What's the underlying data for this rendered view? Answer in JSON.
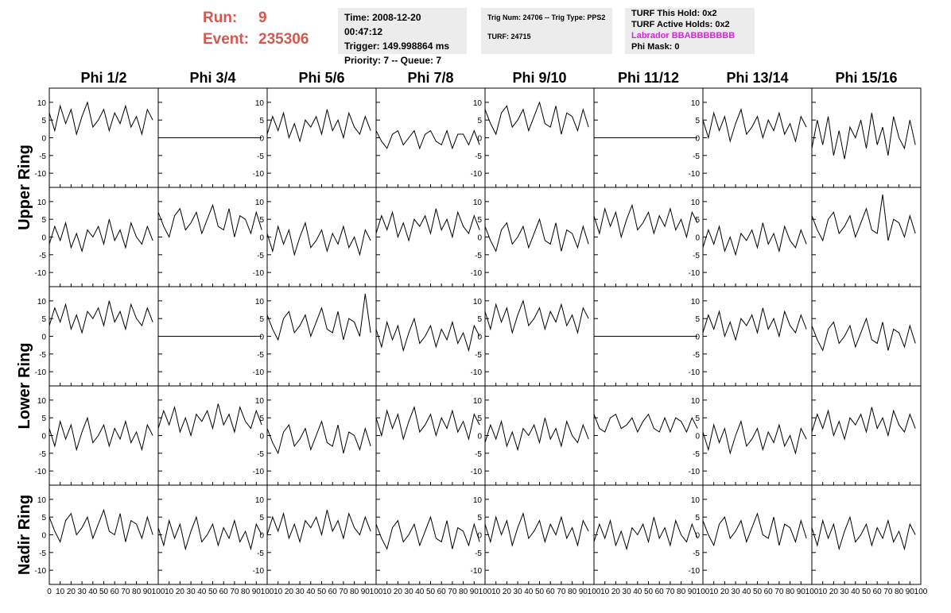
{
  "header": {
    "run_label": "Run:",
    "run": "9",
    "event_label": "Event:",
    "event": "235306"
  },
  "info_boxes": [
    [
      "Time: 2008-12-20 00:47:12",
      "Trigger: 149.998864 ms",
      "Priority: 7 -- Queue: 7"
    ],
    [
      "Trig Num: 24706 -- Trig Type: PPS2",
      "TURF: 24715"
    ],
    [
      "TURF This Hold: 0x2",
      "TURF Active Holds: 0x2",
      "Labrador BBABBBBBBB",
      "Phi Mask: 0"
    ]
  ],
  "chart_data": {
    "type": "line",
    "color": "#000000",
    "columns": [
      "Phi 1/2",
      "Phi 3/4",
      "Phi 5/6",
      "Phi 7/8",
      "Phi 9/10",
      "Phi 11/12",
      "Phi 13/14",
      "Phi 15/16"
    ],
    "ring_labels": [
      "Upper Ring",
      "Lower Ring",
      "Nadir Ring"
    ],
    "xlim": [
      0,
      100
    ],
    "xticks": [
      0,
      10,
      20,
      30,
      40,
      50,
      60,
      70,
      80,
      90,
      100
    ],
    "ylim": [
      -14,
      14
    ],
    "yticks": [
      -10,
      -5,
      0,
      5,
      10
    ],
    "x": [
      0,
      5,
      10,
      15,
      20,
      25,
      30,
      35,
      40,
      45,
      50,
      55,
      60,
      65,
      70,
      75,
      80,
      85,
      90,
      95
    ],
    "waveforms": [
      [
        [
          7,
          2,
          9,
          4,
          8,
          1,
          6,
          10,
          3,
          5,
          8,
          2,
          7,
          4,
          9,
          3,
          6,
          1,
          8,
          5
        ],
        [
          0,
          0,
          0,
          0,
          0,
          0,
          0,
          0,
          0,
          0,
          0,
          0,
          0,
          0,
          0,
          0,
          0,
          0,
          0,
          0
        ],
        [
          1,
          6,
          2,
          7,
          0,
          4,
          -1,
          5,
          3,
          6,
          1,
          8,
          2,
          5,
          0,
          7,
          3,
          1,
          6,
          2
        ],
        [
          2,
          -1,
          -3,
          1,
          2,
          -2,
          0,
          2,
          -3,
          1,
          2,
          -1,
          -2,
          2,
          -3,
          1,
          1,
          -2,
          2,
          -2
        ],
        [
          8,
          4,
          1,
          7,
          9,
          3,
          5,
          8,
          2,
          6,
          10,
          4,
          3,
          9,
          1,
          7,
          6,
          2,
          8,
          3
        ],
        [
          0,
          0,
          0,
          0,
          0,
          0,
          0,
          0,
          0,
          0,
          0,
          0,
          0,
          0,
          0,
          0,
          0,
          0,
          0,
          0
        ],
        [
          5,
          0,
          7,
          2,
          6,
          -1,
          4,
          8,
          1,
          3,
          6,
          0,
          5,
          2,
          7,
          1,
          4,
          -1,
          6,
          3
        ],
        [
          -3,
          5,
          -2,
          6,
          -5,
          2,
          -6,
          3,
          0,
          5,
          -3,
          7,
          -2,
          3,
          -5,
          6,
          0,
          -3,
          5,
          -2
        ]
      ],
      [
        [
          -2,
          3,
          -1,
          4,
          -3,
          1,
          -4,
          2,
          0,
          3,
          -2,
          5,
          -1,
          2,
          -3,
          4,
          0,
          -2,
          3,
          -1
        ],
        [
          7,
          3,
          0,
          6,
          8,
          2,
          4,
          7,
          1,
          5,
          9,
          3,
          2,
          8,
          0,
          6,
          5,
          1,
          7,
          2
        ],
        [
          1,
          -4,
          3,
          -2,
          2,
          -5,
          0,
          4,
          -3,
          -1,
          2,
          -4,
          1,
          -2,
          3,
          -3,
          0,
          -5,
          2,
          -1
        ],
        [
          1,
          6,
          2,
          7,
          0,
          4,
          -1,
          5,
          3,
          6,
          1,
          8,
          2,
          5,
          0,
          7,
          3,
          1,
          6,
          2
        ],
        [
          3,
          -1,
          -4,
          2,
          4,
          -2,
          0,
          3,
          -3,
          1,
          5,
          -1,
          -2,
          4,
          -4,
          2,
          1,
          -3,
          3,
          -2
        ],
        [
          6,
          1,
          8,
          3,
          7,
          0,
          5,
          9,
          2,
          4,
          7,
          1,
          6,
          3,
          8,
          2,
          5,
          0,
          7,
          4
        ],
        [
          -3,
          2,
          -2,
          3,
          -4,
          0,
          -5,
          1,
          -1,
          2,
          -3,
          4,
          -2,
          1,
          -4,
          3,
          -1,
          -3,
          2,
          -2
        ],
        [
          6,
          2,
          -1,
          5,
          7,
          1,
          3,
          6,
          0,
          4,
          8,
          2,
          1,
          12,
          -1,
          5,
          4,
          0,
          6,
          1
        ]
      ],
      [
        [
          3,
          8,
          4,
          9,
          2,
          6,
          1,
          7,
          5,
          8,
          3,
          10,
          4,
          7,
          2,
          9,
          5,
          3,
          8,
          4
        ],
        [
          0,
          0,
          0,
          0,
          0,
          0,
          0,
          0,
          0,
          0,
          0,
          0,
          0,
          0,
          0,
          0,
          0,
          0,
          0,
          0
        ],
        [
          6,
          2,
          -1,
          5,
          7,
          1,
          3,
          6,
          0,
          4,
          8,
          2,
          1,
          7,
          -1,
          5,
          4,
          0,
          12,
          1
        ],
        [
          2,
          -3,
          4,
          -1,
          3,
          -4,
          1,
          5,
          -2,
          0,
          3,
          -3,
          2,
          -1,
          4,
          -2,
          1,
          -4,
          3,
          0
        ],
        [
          7,
          2,
          9,
          4,
          8,
          1,
          6,
          10,
          3,
          5,
          8,
          2,
          7,
          4,
          9,
          3,
          6,
          1,
          8,
          5
        ],
        [
          0,
          0,
          0,
          0,
          0,
          0,
          0,
          0,
          0,
          0,
          0,
          0,
          0,
          0,
          0,
          0,
          0,
          0,
          0,
          0
        ],
        [
          1,
          6,
          2,
          7,
          0,
          4,
          -1,
          5,
          3,
          6,
          1,
          8,
          2,
          5,
          0,
          7,
          3,
          1,
          6,
          2
        ],
        [
          3,
          -1,
          -4,
          2,
          4,
          -2,
          0,
          3,
          -3,
          1,
          5,
          -1,
          -2,
          4,
          -4,
          2,
          1,
          -3,
          3,
          -2
        ]
      ],
      [
        [
          2,
          -3,
          4,
          -1,
          3,
          -4,
          1,
          5,
          -2,
          0,
          3,
          -3,
          2,
          -1,
          4,
          -2,
          1,
          -4,
          3,
          0
        ],
        [
          2,
          7,
          3,
          8,
          1,
          5,
          0,
          6,
          4,
          7,
          2,
          9,
          3,
          6,
          1,
          8,
          4,
          2,
          7,
          3
        ],
        [
          2,
          -2,
          -5,
          1,
          3,
          -3,
          -1,
          2,
          -4,
          0,
          4,
          -2,
          -3,
          3,
          -5,
          1,
          0,
          -4,
          2,
          -3
        ],
        [
          5,
          0,
          7,
          2,
          6,
          -1,
          4,
          8,
          1,
          3,
          6,
          0,
          5,
          2,
          7,
          1,
          4,
          -1,
          6,
          3
        ],
        [
          -2,
          3,
          -1,
          4,
          -3,
          1,
          -4,
          2,
          0,
          3,
          -2,
          5,
          -1,
          2,
          -3,
          4,
          0,
          -2,
          3,
          -1
        ],
        [
          6,
          2,
          1,
          5,
          6,
          2,
          3,
          5,
          1,
          4,
          6,
          2,
          1,
          5,
          1,
          5,
          4,
          1,
          5,
          2
        ],
        [
          1,
          -4,
          3,
          -2,
          2,
          -5,
          0,
          4,
          -3,
          -1,
          2,
          -4,
          1,
          -2,
          3,
          -3,
          0,
          -5,
          2,
          -1
        ],
        [
          1,
          6,
          2,
          7,
          0,
          4,
          -1,
          5,
          3,
          6,
          1,
          8,
          2,
          5,
          0,
          7,
          3,
          1,
          6,
          2
        ]
      ],
      [
        [
          5,
          1,
          -2,
          4,
          6,
          0,
          2,
          5,
          -1,
          3,
          7,
          1,
          0,
          6,
          -2,
          4,
          3,
          -1,
          5,
          0
        ],
        [
          2,
          -3,
          4,
          -1,
          3,
          -4,
          1,
          5,
          -2,
          0,
          3,
          -3,
          2,
          -1,
          4,
          -2,
          1,
          -4,
          3,
          0
        ],
        [
          0,
          5,
          1,
          6,
          -1,
          3,
          -2,
          4,
          2,
          5,
          0,
          7,
          1,
          4,
          -1,
          6,
          2,
          0,
          5,
          1
        ],
        [
          3,
          -1,
          -4,
          2,
          4,
          -2,
          0,
          3,
          -3,
          1,
          5,
          -1,
          -2,
          4,
          -4,
          2,
          1,
          -3,
          3,
          -2
        ],
        [
          3,
          -2,
          5,
          0,
          4,
          -3,
          2,
          6,
          -1,
          1,
          4,
          -2,
          3,
          0,
          5,
          -1,
          2,
          -3,
          4,
          1
        ],
        [
          -2,
          3,
          -1,
          4,
          -3,
          1,
          -4,
          2,
          0,
          3,
          -2,
          5,
          -1,
          2,
          -3,
          4,
          0,
          -2,
          3,
          -1
        ],
        [
          4,
          0,
          -3,
          3,
          5,
          -1,
          1,
          4,
          -2,
          2,
          6,
          0,
          -1,
          5,
          -3,
          3,
          2,
          -2,
          4,
          -1
        ],
        [
          2,
          -3,
          4,
          -1,
          3,
          -4,
          1,
          5,
          -2,
          0,
          3,
          -3,
          2,
          -1,
          4,
          -2,
          1,
          -4,
          3,
          0
        ]
      ]
    ]
  }
}
